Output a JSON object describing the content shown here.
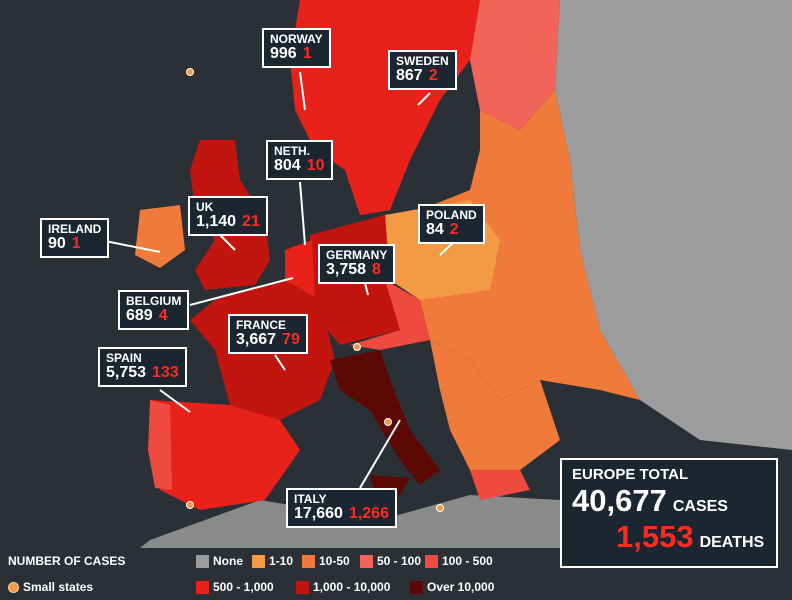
{
  "countries": [
    {
      "name": "NORWAY",
      "cases": "996",
      "deaths": "1"
    },
    {
      "name": "SWEDEN",
      "cases": "867",
      "deaths": "2"
    },
    {
      "name": "NETH.",
      "cases": "804",
      "deaths": "10"
    },
    {
      "name": "UK",
      "cases": "1,140",
      "deaths": "21"
    },
    {
      "name": "IRELAND",
      "cases": "90",
      "deaths": "1"
    },
    {
      "name": "POLAND",
      "cases": "84",
      "deaths": "2"
    },
    {
      "name": "GERMANY",
      "cases": "3,758",
      "deaths": "8"
    },
    {
      "name": "BELGIUM",
      "cases": "689",
      "deaths": "4"
    },
    {
      "name": "FRANCE",
      "cases": "3,667",
      "deaths": "79"
    },
    {
      "name": "SPAIN",
      "cases": "5,753",
      "deaths": "133"
    },
    {
      "name": "ITALY",
      "cases": "17,660",
      "deaths": "1,266"
    }
  ],
  "total": {
    "label": "EUROPE TOTAL",
    "cases": "40,677",
    "cases_label": "CASES",
    "deaths": "1,553",
    "deaths_label": "DEATHS"
  },
  "legend": {
    "title": "NUMBER OF CASES",
    "items": [
      {
        "label": "None",
        "color": "#9c9c9c"
      },
      {
        "label": "1-10",
        "color": "#f39a45"
      },
      {
        "label": "10-50",
        "color": "#f07a3a"
      },
      {
        "label": "50 - 100",
        "color": "#f2645a"
      },
      {
        "label": "100 - 500",
        "color": "#ee4a40"
      },
      {
        "label": "500 - 1,000",
        "color": "#e8221b"
      },
      {
        "label": "1,000 - 10,000",
        "color": "#c3150f"
      },
      {
        "label": "Over 10,000",
        "color": "#5c0906"
      }
    ],
    "small_states": {
      "label": "Small states",
      "color": "#f39a45"
    }
  }
}
